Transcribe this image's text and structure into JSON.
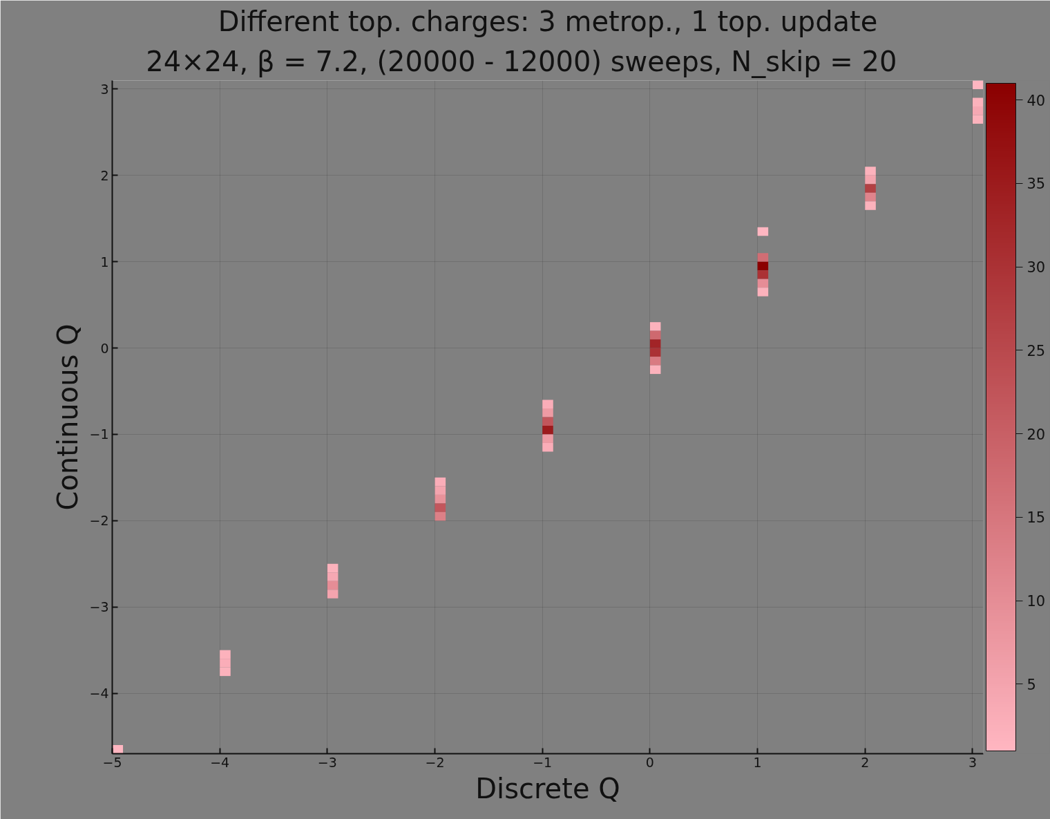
{
  "chart_data": {
    "type": "scatter",
    "marker": "square",
    "title": "Different top. charges: 3 metrop., 1 top. update",
    "subtitle": "24×24,   β = 7.2,   (20000 - 12000) sweeps,   N_skip = 20",
    "xlabel": "Discrete Q",
    "ylabel": "Continuous Q",
    "x": [
      -4.95,
      -3.95,
      -3.95,
      -3.95,
      -2.95,
      -2.95,
      -2.95,
      -2.95,
      -1.95,
      -1.95,
      -1.95,
      -1.95,
      -1.95,
      -0.95,
      -0.95,
      -0.95,
      -0.95,
      -0.95,
      -0.95,
      0.05,
      0.05,
      0.05,
      0.05,
      0.05,
      0.05,
      1.05,
      1.05,
      1.05,
      1.05,
      1.05,
      1.05,
      2.05,
      2.05,
      2.05,
      2.05,
      2.05,
      3.05,
      3.05,
      3.05,
      3.05
    ],
    "values": [
      -4.65,
      -3.55,
      -3.65,
      -3.75,
      -2.55,
      -2.65,
      -2.75,
      -2.85,
      -1.55,
      -1.65,
      -1.75,
      -1.85,
      -1.95,
      -0.65,
      -0.75,
      -0.85,
      -0.95,
      -1.05,
      -1.15,
      0.25,
      0.15,
      0.05,
      -0.05,
      -0.15,
      -0.25,
      1.35,
      1.05,
      0.95,
      0.85,
      0.75,
      0.65,
      2.05,
      1.95,
      1.85,
      1.75,
      1.65,
      3.05,
      2.85,
      2.75,
      2.65
    ],
    "cvalues": [
      1,
      2,
      3,
      2,
      2,
      4,
      10,
      5,
      3,
      5,
      9,
      22,
      13,
      3,
      7,
      22,
      35,
      7,
      3,
      2,
      18,
      33,
      30,
      14,
      2,
      1,
      17,
      41,
      30,
      10,
      2,
      2,
      5,
      27,
      12,
      2,
      1,
      2,
      4,
      2
    ],
    "xlim": [
      -5,
      3.1
    ],
    "ylim": [
      -4.7,
      3.1
    ],
    "xticks": [
      {
        "value": -5,
        "label": "−5"
      },
      {
        "value": -4,
        "label": "−4"
      },
      {
        "value": -3,
        "label": "−3"
      },
      {
        "value": -2,
        "label": "−2"
      },
      {
        "value": -1,
        "label": "−1"
      },
      0,
      1,
      2,
      3
    ],
    "yticks": [
      {
        "value": -4,
        "label": "−4"
      },
      {
        "value": -3,
        "label": "−3"
      },
      {
        "value": -2,
        "label": "−2"
      },
      {
        "value": -1,
        "label": "−1"
      },
      0,
      1,
      2,
      3
    ],
    "clim": [
      1,
      41
    ],
    "cticks": [
      5,
      10,
      15,
      20,
      25,
      30,
      35,
      40
    ],
    "grid": true
  }
}
